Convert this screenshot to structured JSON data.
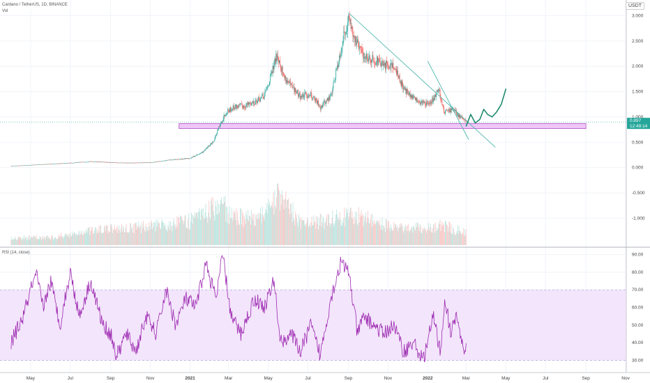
{
  "header": {
    "symbol_line": "Cardano / TetherUS, 1D, BINANCE",
    "volume_label": "Vol",
    "currency": "USDT"
  },
  "rsi_panel": {
    "label": "RSI (14, close)",
    "band_upper": 70,
    "band_lower": 30,
    "ticks": [
      "90.00",
      "80.00",
      "70.00",
      "60.00",
      "50.00",
      "40.00",
      "30.00"
    ],
    "tick_values": [
      90,
      80,
      70,
      60,
      50,
      40,
      30
    ]
  },
  "price_badge": {
    "price": "0.897",
    "time": "12:49:14",
    "color": "#26a69a"
  },
  "colors": {
    "up": "#26a69a",
    "down": "#ef5350",
    "rsi_line": "#9c27b0",
    "zone_fill": "#e9b5f5",
    "zone_border": "#b04fc4",
    "trendline": "#4db6ac",
    "projection": "#1e8a6e"
  },
  "chart_data": [
    {
      "type": "candlestick",
      "title": "",
      "xlabel": "",
      "ylabel": "",
      "x_tick_labels": [
        "May",
        "Jul",
        "Sep",
        "Nov",
        "2021",
        "Mar",
        "May",
        "Jul",
        "Sep",
        "Nov",
        "2022",
        "Mar",
        "May",
        "Jul",
        "Sep",
        "Nov"
      ],
      "y_tick_labels": [
        "3.000",
        "2.500",
        "2.000",
        "1.500",
        "1.000",
        "0.500",
        "0.000",
        "-0.500",
        "-1.000"
      ],
      "y_tick_values": [
        3.0,
        2.5,
        2.0,
        1.5,
        1.0,
        0.5,
        0.0,
        -0.5,
        -1.0
      ],
      "ylim": [
        -1.45,
        3.2
      ],
      "price_path": [
        [
          "2020-04-01",
          0.03
        ],
        [
          "2020-05-01",
          0.05
        ],
        [
          "2020-06-01",
          0.07
        ],
        [
          "2020-07-01",
          0.09
        ],
        [
          "2020-08-01",
          0.12
        ],
        [
          "2020-09-01",
          0.1
        ],
        [
          "2020-10-01",
          0.09
        ],
        [
          "2020-11-01",
          0.1
        ],
        [
          "2020-12-01",
          0.15
        ],
        [
          "2020-12-31",
          0.18
        ],
        [
          "2021-01-20",
          0.3
        ],
        [
          "2021-02-05",
          0.5
        ],
        [
          "2021-02-15",
          0.8
        ],
        [
          "2021-02-25",
          1.1
        ],
        [
          "2021-03-10",
          1.2
        ],
        [
          "2021-03-25",
          1.22
        ],
        [
          "2021-04-10",
          1.3
        ],
        [
          "2021-04-25",
          1.4
        ],
        [
          "2021-05-05",
          1.8
        ],
        [
          "2021-05-15",
          2.25
        ],
        [
          "2021-05-25",
          1.8
        ],
        [
          "2021-06-05",
          1.6
        ],
        [
          "2021-06-20",
          1.4
        ],
        [
          "2021-07-05",
          1.45
        ],
        [
          "2021-07-20",
          1.2
        ],
        [
          "2021-08-05",
          1.4
        ],
        [
          "2021-08-15",
          2.0
        ],
        [
          "2021-08-25",
          2.6
        ],
        [
          "2021-09-02",
          2.95
        ],
        [
          "2021-09-12",
          2.5
        ],
        [
          "2021-09-25",
          2.2
        ],
        [
          "2021-10-10",
          2.15
        ],
        [
          "2021-10-25",
          2.0
        ],
        [
          "2021-11-08",
          2.05
        ],
        [
          "2021-11-20",
          1.7
        ],
        [
          "2021-12-05",
          1.4
        ],
        [
          "2021-12-20",
          1.3
        ],
        [
          "2022-01-05",
          1.25
        ],
        [
          "2022-01-18",
          1.55
        ],
        [
          "2022-01-26",
          1.1
        ],
        [
          "2022-02-08",
          1.15
        ],
        [
          "2022-02-20",
          1.0
        ],
        [
          "2022-03-01",
          0.9
        ]
      ],
      "support_zone": {
        "from": "2020-12-15",
        "to": "2022-09-01",
        "y_low": 0.77,
        "y_high": 0.87
      },
      "trendlines": [
        {
          "x1": "2021-09-02",
          "y1": 3.05,
          "x2": "2022-04-15",
          "y2": 0.4
        },
        {
          "x1": "2022-01-01",
          "y1": 2.1,
          "x2": "2022-03-05",
          "y2": 0.55
        }
      ],
      "projection": [
        [
          "2022-03-01",
          0.82
        ],
        [
          "2022-03-08",
          1.05
        ],
        [
          "2022-03-15",
          0.88
        ],
        [
          "2022-03-22",
          0.95
        ],
        [
          "2022-03-28",
          1.15
        ],
        [
          "2022-04-03",
          1.05
        ],
        [
          "2022-04-10",
          1.0
        ],
        [
          "2022-04-17",
          1.1
        ],
        [
          "2022-04-24",
          1.25
        ],
        [
          "2022-05-01",
          1.55
        ]
      ]
    },
    {
      "type": "bar",
      "title": "Vol",
      "values_shape": "relative",
      "peaks": [
        [
          "2020-06-01",
          0.15
        ],
        [
          "2020-08-15",
          0.3
        ],
        [
          "2020-12-01",
          0.4
        ],
        [
          "2021-01-10",
          0.5
        ],
        [
          "2021-02-20",
          0.85
        ],
        [
          "2021-03-01",
          0.6
        ],
        [
          "2021-04-15",
          0.5
        ],
        [
          "2021-05-20",
          1.0
        ],
        [
          "2021-06-20",
          0.4
        ],
        [
          "2021-08-25",
          0.55
        ],
        [
          "2021-09-10",
          0.6
        ],
        [
          "2021-11-10",
          0.35
        ],
        [
          "2022-01-10",
          0.35
        ],
        [
          "2022-01-25",
          0.4
        ],
        [
          "2022-02-25",
          0.25
        ]
      ]
    },
    {
      "type": "line",
      "title": "RSI (14, close)",
      "ylim": [
        25,
        93
      ],
      "series": [
        {
          "values": [
            [
              "2020-04-01",
              40
            ],
            [
              "2020-04-20",
              55
            ],
            [
              "2020-05-01",
              70
            ],
            [
              "2020-05-10",
              78
            ],
            [
              "2020-05-20",
              60
            ],
            [
              "2020-06-01",
              75
            ],
            [
              "2020-06-15",
              50
            ],
            [
              "2020-07-01",
              80
            ],
            [
              "2020-07-15",
              55
            ],
            [
              "2020-08-01",
              75
            ],
            [
              "2020-08-20",
              50
            ],
            [
              "2020-09-01",
              45
            ],
            [
              "2020-09-10",
              32
            ],
            [
              "2020-09-25",
              45
            ],
            [
              "2020-10-10",
              35
            ],
            [
              "2020-10-25",
              55
            ],
            [
              "2020-11-10",
              45
            ],
            [
              "2020-11-25",
              70
            ],
            [
              "2020-12-10",
              50
            ],
            [
              "2020-12-25",
              65
            ],
            [
              "2021-01-10",
              60
            ],
            [
              "2021-01-25",
              85
            ],
            [
              "2021-02-10",
              65
            ],
            [
              "2021-02-20",
              90
            ],
            [
              "2021-03-05",
              55
            ],
            [
              "2021-03-20",
              45
            ],
            [
              "2021-04-10",
              65
            ],
            [
              "2021-04-25",
              60
            ],
            [
              "2021-05-10",
              75
            ],
            [
              "2021-05-20",
              40
            ],
            [
              "2021-06-05",
              45
            ],
            [
              "2021-06-20",
              35
            ],
            [
              "2021-07-05",
              50
            ],
            [
              "2021-07-20",
              33
            ],
            [
              "2021-08-05",
              65
            ],
            [
              "2021-08-20",
              85
            ],
            [
              "2021-09-02",
              80
            ],
            [
              "2021-09-15",
              45
            ],
            [
              "2021-09-25",
              55
            ],
            [
              "2021-10-10",
              50
            ],
            [
              "2021-10-25",
              45
            ],
            [
              "2021-11-10",
              50
            ],
            [
              "2021-11-25",
              35
            ],
            [
              "2021-12-10",
              40
            ],
            [
              "2021-12-25",
              30
            ],
            [
              "2022-01-10",
              55
            ],
            [
              "2022-01-20",
              35
            ],
            [
              "2022-01-28",
              65
            ],
            [
              "2022-02-05",
              45
            ],
            [
              "2022-02-15",
              55
            ],
            [
              "2022-02-25",
              35
            ],
            [
              "2022-03-01",
              38
            ]
          ]
        }
      ]
    }
  ]
}
